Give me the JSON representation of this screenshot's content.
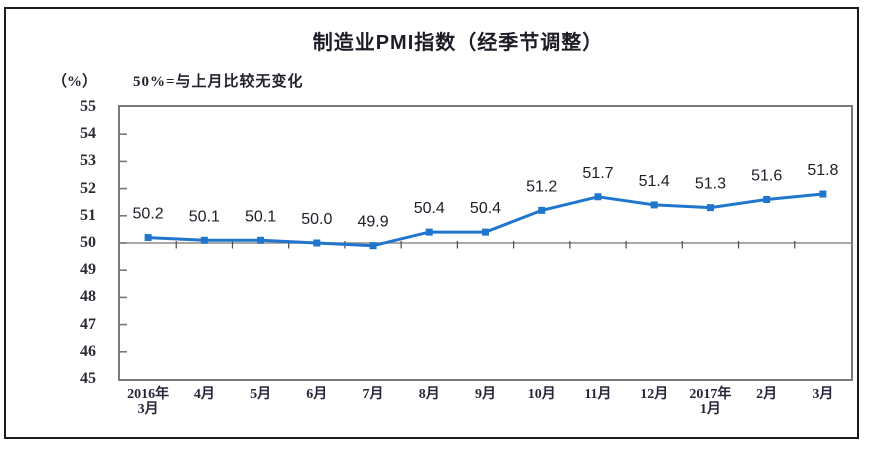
{
  "chart_data": {
    "type": "line",
    "title": "制造业PMI指数（经季节调整）",
    "unit_label": "（%）",
    "subtitle": "50%=与上月比较无变化",
    "categories": [
      "2016年3月",
      "4月",
      "5月",
      "6月",
      "7月",
      "8月",
      "9月",
      "10月",
      "11月",
      "12月",
      "2017年1月",
      "2月",
      "3月"
    ],
    "categories_display": [
      [
        "2016年",
        "3月"
      ],
      [
        "4月"
      ],
      [
        "5月"
      ],
      [
        "6月"
      ],
      [
        "7月"
      ],
      [
        "8月"
      ],
      [
        "9月"
      ],
      [
        "10月"
      ],
      [
        "11月"
      ],
      [
        "12月"
      ],
      [
        "2017年",
        "1月"
      ],
      [
        "2月"
      ],
      [
        "3月"
      ]
    ],
    "values": [
      50.2,
      50.1,
      50.1,
      50.0,
      49.9,
      50.4,
      50.4,
      51.2,
      51.7,
      51.4,
      51.3,
      51.6,
      51.8
    ],
    "data_labels": [
      "50.2",
      "50.1",
      "50.1",
      "50.0",
      "49.9",
      "50.4",
      "50.4",
      "51.2",
      "51.7",
      "51.4",
      "51.3",
      "51.6",
      "51.8"
    ],
    "ylabel": "",
    "xlabel": "",
    "ylim": [
      45,
      55
    ],
    "ytick_interval": 1,
    "ytick_labels": [
      "45",
      "46",
      "47",
      "48",
      "49",
      "50",
      "51",
      "52",
      "53",
      "54",
      "55"
    ],
    "reference_line_value": 50,
    "grid": "off",
    "legend_position": "none",
    "marker_style": "square",
    "data_label_position": "above",
    "colors": {
      "line": "#1F76CC",
      "marker": "#1F76CC",
      "reference_line": "#8C8C8C",
      "plot_border": "#7A7A7A",
      "outer_border": "#1C1C1C",
      "text": "#23232E"
    }
  }
}
